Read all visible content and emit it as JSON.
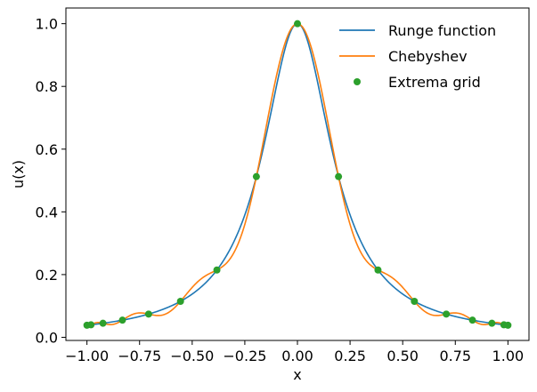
{
  "chart_data": {
    "type": "line",
    "title": "",
    "xlabel": "x",
    "ylabel": "u(x)",
    "xlim": [
      -1.1,
      1.1
    ],
    "ylim": [
      -0.01,
      1.05
    ],
    "xticks": [
      -1.0,
      -0.75,
      -0.5,
      -0.25,
      0.0,
      0.25,
      0.5,
      0.75,
      1.0
    ],
    "xtick_labels": [
      "−1.00",
      "−0.75",
      "−0.50",
      "−0.25",
      "0.00",
      "0.25",
      "0.50",
      "0.75",
      "1.00"
    ],
    "yticks": [
      0.0,
      0.2,
      0.4,
      0.6,
      0.8,
      1.0
    ],
    "ytick_labels": [
      "0.0",
      "0.2",
      "0.4",
      "0.6",
      "0.8",
      "1.0"
    ],
    "grid": false,
    "legend_position": "top-right",
    "series": [
      {
        "name": "Runge function",
        "kind": "line",
        "color": "#1f77b4",
        "function": "1/(1+25x^2)",
        "x_range": [
          -1.0,
          1.0
        ]
      },
      {
        "name": "Chebyshev",
        "kind": "line",
        "color": "#ff7f0e",
        "interpolant_of": "Runge function",
        "nodes": "Extrema grid",
        "x_range": [
          -1.0,
          1.0
        ]
      },
      {
        "name": "Extrema grid",
        "kind": "scatter",
        "color": "#2ca02c",
        "x": [
          -1.0,
          -0.9808,
          -0.9239,
          -0.8315,
          -0.7071,
          -0.5556,
          -0.3827,
          -0.1951,
          0.0,
          0.1951,
          0.3827,
          0.5556,
          0.7071,
          0.8315,
          0.9239,
          0.9808,
          1.0
        ],
        "y": [
          0.0385,
          0.0399,
          0.0448,
          0.0547,
          0.0741,
          0.1147,
          0.2146,
          0.5124,
          1.0,
          0.5124,
          0.2146,
          0.1147,
          0.0741,
          0.0547,
          0.0448,
          0.0399,
          0.0385
        ]
      }
    ]
  }
}
